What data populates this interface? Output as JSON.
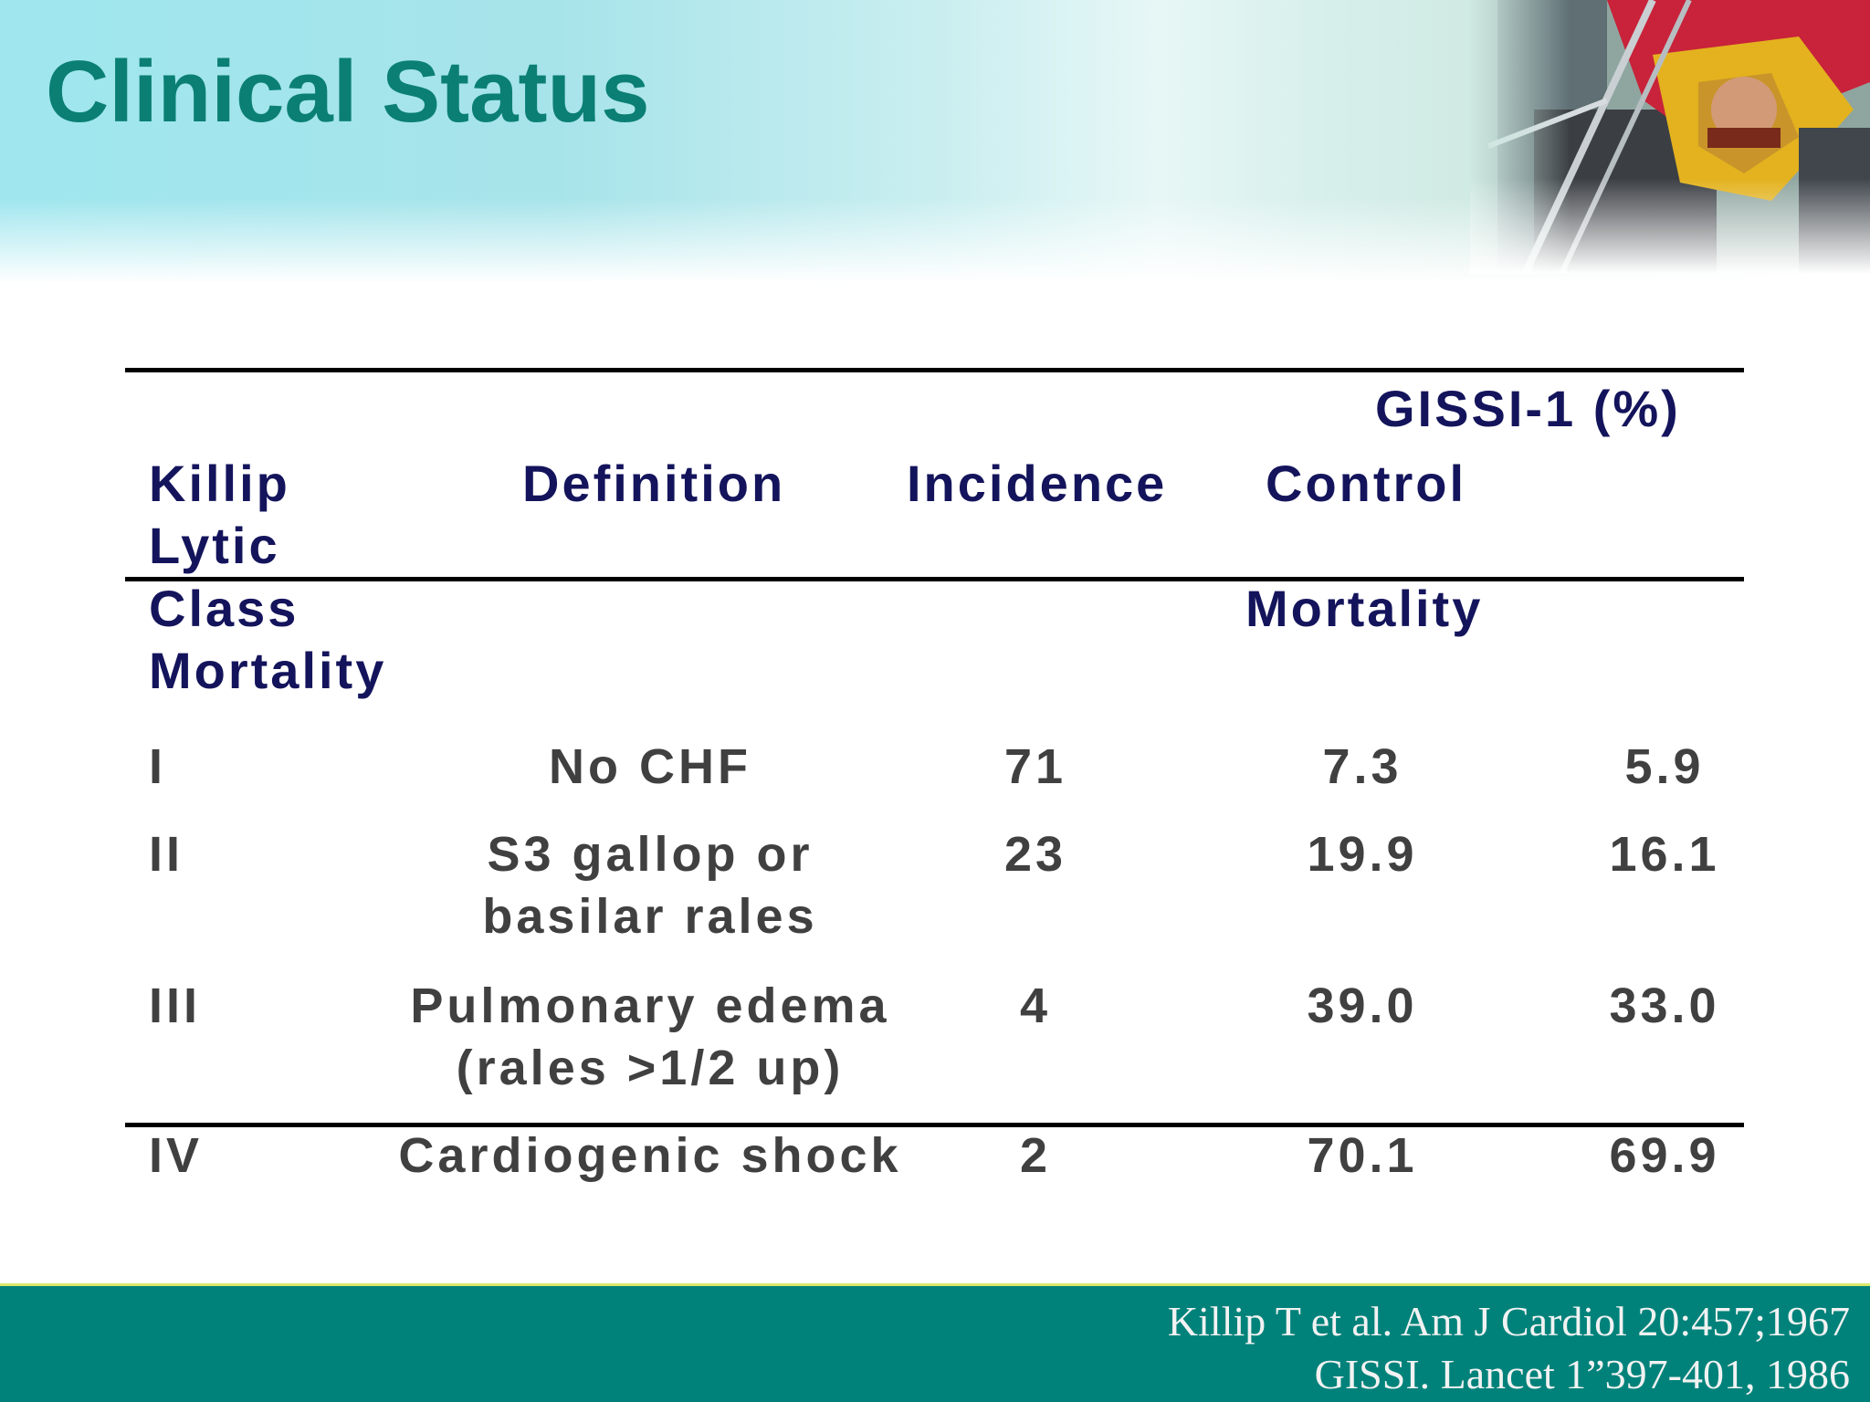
{
  "slide": {
    "title": "Clinical Status"
  },
  "table": {
    "group_header": "GISSI-1 (%)",
    "headers": {
      "col1_line1": "Killip",
      "col1_line2": "Lytic",
      "col1_line3": "Class",
      "col1_line4": "Mortality",
      "definition": "Definition",
      "incidence": "Incidence",
      "control_line1": "Control",
      "control_line2": "Mortality"
    },
    "rows": [
      {
        "class": "I",
        "definition_line1": "No CHF",
        "definition_line2": "",
        "incidence": "71",
        "control": "7.3",
        "lytic": "5.9"
      },
      {
        "class": "II",
        "definition_line1": "S3 gallop or",
        "definition_line2": "basilar rales",
        "incidence": "23",
        "control": "19.9",
        "lytic": "16.1"
      },
      {
        "class": "III",
        "definition_line1": "Pulmonary edema",
        "definition_line2": "(rales >1/2 up)",
        "incidence": "4",
        "control": "39.0",
        "lytic": "33.0"
      },
      {
        "class": "IV",
        "definition_line1": "Cardiogenic shock",
        "definition_line2": "",
        "incidence": "2",
        "control": "70.1",
        "lytic": "69.9"
      }
    ]
  },
  "footer": {
    "citation_line1": "Killip T et al. Am J Cardiol 20:457;1967",
    "citation_line2": "GISSI. Lancet 1”397-401, 1986"
  },
  "colors": {
    "title": "#0b7f74",
    "header_text": "#14145c",
    "body_text": "#404040",
    "footer_band": "#00827a"
  }
}
